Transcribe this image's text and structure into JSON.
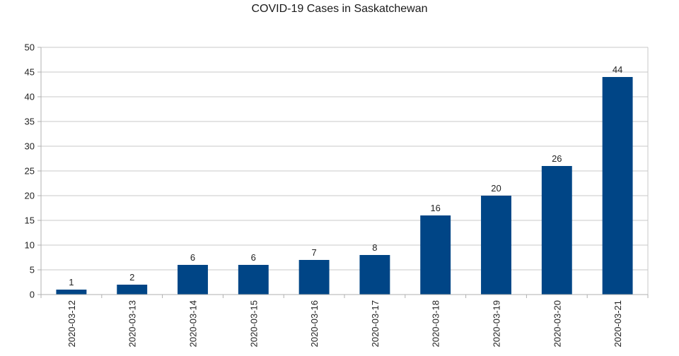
{
  "chart_data": {
    "type": "bar",
    "title": "COVID-19 Cases in Saskatchewan",
    "categories": [
      "2020-03-12",
      "2020-03-13",
      "2020-03-14",
      "2020-03-15",
      "2020-03-16",
      "2020-03-17",
      "2020-03-18",
      "2020-03-19",
      "2020-03-20",
      "2020-03-21"
    ],
    "values": [
      1,
      2,
      6,
      6,
      7,
      8,
      16,
      20,
      26,
      44
    ],
    "data_labels": [
      "1",
      "2",
      "6",
      "6",
      "7",
      "8",
      "16",
      "20",
      "26",
      "44"
    ],
    "y_ticks": [
      "0",
      "5",
      "10",
      "15",
      "20",
      "25",
      "30",
      "35",
      "40",
      "45",
      "50"
    ],
    "ylim": [
      0,
      50
    ],
    "grid": true,
    "legend": "none",
    "bar_color": "#004586",
    "grid_color": "#c8c8c8"
  }
}
